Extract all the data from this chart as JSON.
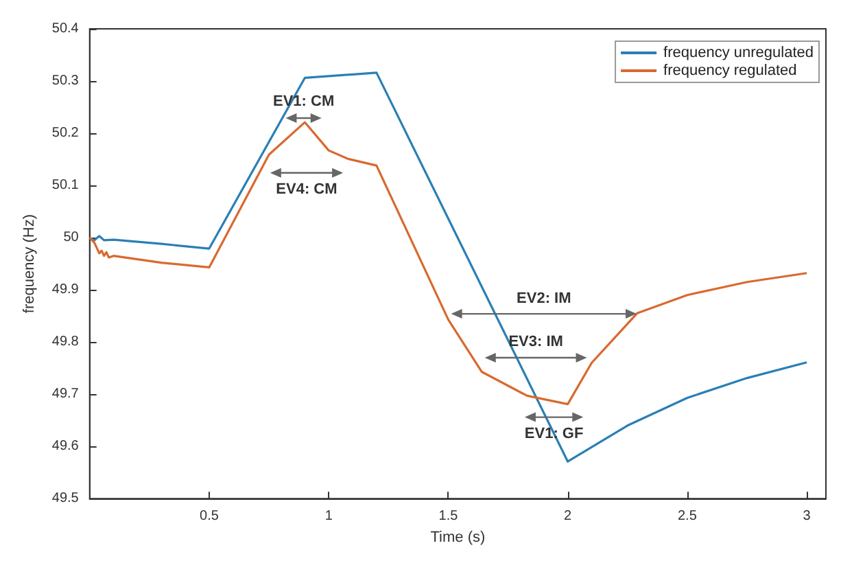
{
  "chart_data": {
    "type": "line",
    "xlabel": "Time (s)",
    "ylabel": "frequency (Hz)",
    "xlim": [
      0,
      3.08
    ],
    "xticks": [
      0.5,
      1,
      1.5,
      2,
      2.5,
      3
    ],
    "ylim": [
      49.5,
      50.4
    ],
    "yticks": [
      49.5,
      49.6,
      49.7,
      49.8,
      49.9,
      50,
      50.1,
      50.2,
      50.3,
      50.4
    ],
    "grid": false,
    "legend": "top right",
    "line_style": "solid",
    "marker": "none",
    "series": [
      {
        "name": "frequency unregulated",
        "color": "#2a7fb5",
        "x": [
          0,
          0.02,
          0.04,
          0.06,
          0.1,
          0.3,
          0.5,
          0.9,
          1.2,
          2.0,
          2.25,
          2.5,
          2.75,
          3.0
        ],
        "values": [
          50.0,
          49.995,
          50.003,
          49.995,
          49.996,
          49.988,
          49.979,
          50.306,
          50.316,
          49.571,
          49.64,
          49.693,
          49.731,
          49.761
        ]
      },
      {
        "name": "frequency regulated",
        "color": "#d9692f",
        "x": [
          0,
          0.02,
          0.04,
          0.05,
          0.06,
          0.07,
          0.08,
          0.1,
          0.3,
          0.5,
          0.75,
          0.9,
          1.0,
          1.08,
          1.2,
          1.5,
          1.64,
          1.83,
          2.0,
          2.1,
          2.29,
          2.5,
          2.75,
          3.0
        ],
        "values": [
          50.0,
          49.99,
          49.97,
          49.975,
          49.965,
          49.972,
          49.962,
          49.965,
          49.952,
          49.943,
          50.159,
          50.221,
          50.167,
          50.151,
          50.138,
          49.843,
          49.743,
          49.697,
          49.681,
          49.76,
          49.855,
          49.89,
          49.915,
          49.932
        ]
      }
    ],
    "annotations": [
      "EV1: CM",
      "EV4: CM",
      "EV2: IM",
      "EV3: IM",
      "EV1: GF"
    ]
  }
}
